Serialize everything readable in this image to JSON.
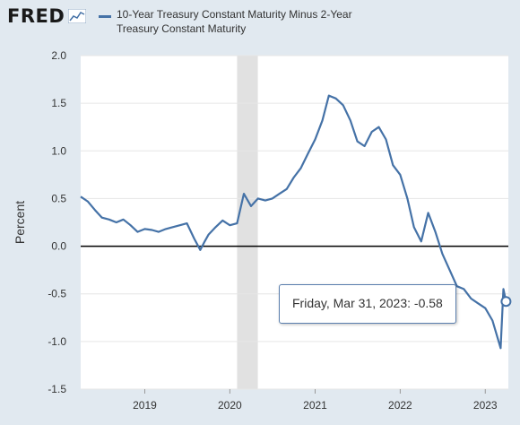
{
  "header": {
    "logo_text": "FRED",
    "logo_mark": "fred-graph-icon",
    "legend_label": "10-Year Treasury Constant Maturity Minus 2-Year Treasury Constant Maturity"
  },
  "tooltip": {
    "date_label": "Friday, Mar 31, 2023:",
    "value_label": "-0.58"
  },
  "colors": {
    "series": "#4572a7",
    "plot_bg": "#ffffff",
    "page_bg": "#e1e9f0",
    "recession": "#e1e1e1",
    "zero_line": "#000000"
  },
  "chart_data": {
    "type": "line",
    "ylabel": "Percent",
    "xlabel": "",
    "ylim": [
      -1.5,
      2.0
    ],
    "xlim": [
      "2018-04-01",
      "2023-04-10"
    ],
    "yticks": [
      "2.0",
      "1.5",
      "1.0",
      "0.5",
      "0.0",
      "-0.5",
      "-1.0",
      "-1.5"
    ],
    "xticks": [
      "2019",
      "2020",
      "2021",
      "2022",
      "2023"
    ],
    "grid": true,
    "reference_line": 0,
    "recession_shading": [
      [
        "2020-02-01",
        "2020-04-30"
      ]
    ],
    "series": [
      {
        "x": [
          "2018-04-01",
          "2018-05-01",
          "2018-06-01",
          "2018-07-01",
          "2018-08-01",
          "2018-09-01",
          "2018-10-01",
          "2018-11-01",
          "2018-12-01",
          "2019-01-01",
          "2019-02-01",
          "2019-03-01",
          "2019-04-01",
          "2019-05-01",
          "2019-06-01",
          "2019-07-01",
          "2019-08-01",
          "2019-08-27",
          "2019-09-15",
          "2019-10-01",
          "2019-11-01",
          "2019-12-01",
          "2020-01-01",
          "2020-02-01",
          "2020-03-01",
          "2020-04-01",
          "2020-05-01",
          "2020-06-01",
          "2020-07-01",
          "2020-08-01",
          "2020-09-01",
          "2020-10-01",
          "2020-11-01",
          "2020-12-01",
          "2021-01-01",
          "2021-02-01",
          "2021-03-01",
          "2021-03-31",
          "2021-05-01",
          "2021-06-01",
          "2021-07-01",
          "2021-08-01",
          "2021-09-01",
          "2021-10-01",
          "2021-11-01",
          "2021-12-01",
          "2022-01-01",
          "2022-02-01",
          "2022-03-01",
          "2022-04-01",
          "2022-05-01",
          "2022-06-01",
          "2022-07-01",
          "2022-08-01",
          "2022-09-01",
          "2022-10-01",
          "2022-11-01",
          "2022-12-01",
          "2023-01-01",
          "2023-02-01",
          "2023-03-08",
          "2023-03-20",
          "2023-03-31"
        ],
        "y": [
          0.52,
          0.47,
          0.38,
          0.3,
          0.28,
          0.25,
          0.28,
          0.22,
          0.15,
          0.18,
          0.17,
          0.15,
          0.18,
          0.2,
          0.22,
          0.24,
          0.08,
          -0.04,
          0.05,
          0.12,
          0.2,
          0.27,
          0.22,
          0.24,
          0.55,
          0.42,
          0.5,
          0.48,
          0.5,
          0.55,
          0.6,
          0.72,
          0.82,
          0.97,
          1.12,
          1.32,
          1.58,
          1.55,
          1.48,
          1.32,
          1.1,
          1.05,
          1.2,
          1.25,
          1.12,
          0.85,
          0.75,
          0.5,
          0.2,
          0.05,
          0.35,
          0.15,
          -0.08,
          -0.25,
          -0.42,
          -0.45,
          -0.55,
          -0.6,
          -0.65,
          -0.78,
          -1.07,
          -0.45,
          -0.58
        ]
      }
    ]
  }
}
